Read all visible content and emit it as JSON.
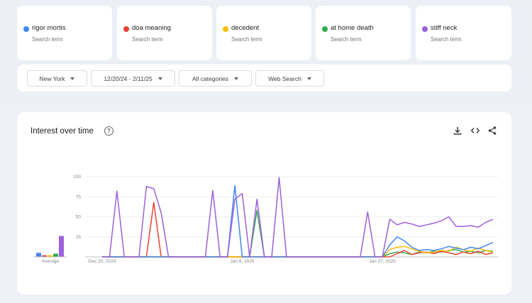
{
  "terms": [
    {
      "label": "rigor mortis",
      "sub": "Search term",
      "color": "#4285f4"
    },
    {
      "label": "doa meaning",
      "sub": "Search term",
      "color": "#ea4335"
    },
    {
      "label": "decedent",
      "sub": "Search term",
      "color": "#fbbc04"
    },
    {
      "label": "at home death",
      "sub": "Search term",
      "color": "#34a853"
    },
    {
      "label": "stiff neck",
      "sub": "Search term",
      "color": "#9c61db"
    }
  ],
  "filters": {
    "location": "New York",
    "date_range": "12/20/24 - 2/11/25",
    "category": "All categories",
    "search_type": "Web Search"
  },
  "chart": {
    "title": "Interest over time",
    "average_label": "Average"
  },
  "chart_data": {
    "type": "line",
    "title": "Interest over time",
    "ylim": [
      0,
      100
    ],
    "yticks": [
      "100",
      "75",
      "50",
      "25"
    ],
    "x_tick_labels": [
      {
        "label": "Dec 20, 2024",
        "index": 0
      },
      {
        "label": "Jan 8, 2025",
        "index": 19
      },
      {
        "label": "Jan 27, 2025",
        "index": 38
      }
    ],
    "series": [
      {
        "name": "rigor mortis",
        "color": "#4285f4",
        "values": [
          0,
          0,
          0,
          0,
          0,
          0,
          0,
          0,
          0,
          0,
          0,
          0,
          0,
          0,
          0,
          0,
          0,
          0,
          89,
          0,
          0,
          0,
          0,
          0,
          0,
          0,
          0,
          0,
          0,
          0,
          0,
          0,
          0,
          0,
          0,
          0,
          0,
          0,
          0,
          15,
          25,
          20,
          12,
          8,
          9,
          8,
          10,
          13,
          11,
          9,
          12,
          10,
          14,
          18
        ]
      },
      {
        "name": "doa meaning",
        "color": "#ea4335",
        "values": [
          0,
          0,
          0,
          0,
          0,
          0,
          0,
          68,
          0,
          0,
          0,
          0,
          0,
          0,
          0,
          0,
          0,
          0,
          0,
          0,
          0,
          0,
          0,
          0,
          0,
          0,
          0,
          0,
          0,
          0,
          0,
          0,
          0,
          0,
          0,
          0,
          0,
          0,
          0,
          0,
          4,
          8,
          3,
          5,
          6,
          4,
          7,
          5,
          3,
          6,
          4,
          7,
          3,
          5
        ]
      },
      {
        "name": "decedent",
        "color": "#fbbc04",
        "values": [
          0,
          0,
          0,
          0,
          0,
          0,
          0,
          0,
          0,
          0,
          0,
          0,
          0,
          0,
          0,
          0,
          0,
          0,
          0,
          0,
          0,
          0,
          0,
          0,
          0,
          0,
          0,
          0,
          0,
          0,
          0,
          0,
          0,
          0,
          0,
          0,
          0,
          0,
          0,
          9,
          12,
          13,
          10,
          7,
          5,
          6,
          8,
          7,
          12,
          9,
          7,
          11,
          8,
          6
        ]
      },
      {
        "name": "at home death",
        "color": "#34a853",
        "values": [
          0,
          0,
          0,
          0,
          0,
          0,
          0,
          0,
          0,
          0,
          0,
          0,
          0,
          0,
          0,
          0,
          0,
          0,
          0,
          0,
          0,
          58,
          0,
          0,
          0,
          0,
          0,
          0,
          0,
          0,
          0,
          0,
          0,
          0,
          0,
          0,
          0,
          0,
          0,
          4,
          6,
          5,
          3,
          6,
          5,
          7,
          6,
          8,
          9,
          6,
          7,
          5,
          8,
          7
        ]
      },
      {
        "name": "stiff neck",
        "color": "#9c61db",
        "values": [
          0,
          0,
          82,
          0,
          0,
          0,
          88,
          85,
          55,
          0,
          0,
          0,
          0,
          0,
          0,
          83,
          0,
          0,
          72,
          79,
          0,
          72,
          0,
          0,
          99,
          0,
          0,
          0,
          0,
          0,
          0,
          0,
          0,
          0,
          0,
          0,
          56,
          0,
          0,
          47,
          40,
          43,
          41,
          38,
          40,
          42,
          45,
          50,
          38,
          38,
          39,
          37,
          43,
          47
        ]
      }
    ],
    "averages": [
      {
        "name": "rigor mortis",
        "value": 5
      },
      {
        "name": "doa meaning",
        "value": 2
      },
      {
        "name": "decedent",
        "value": 2
      },
      {
        "name": "at home death",
        "value": 4
      },
      {
        "name": "stiff neck",
        "value": 26
      }
    ]
  }
}
